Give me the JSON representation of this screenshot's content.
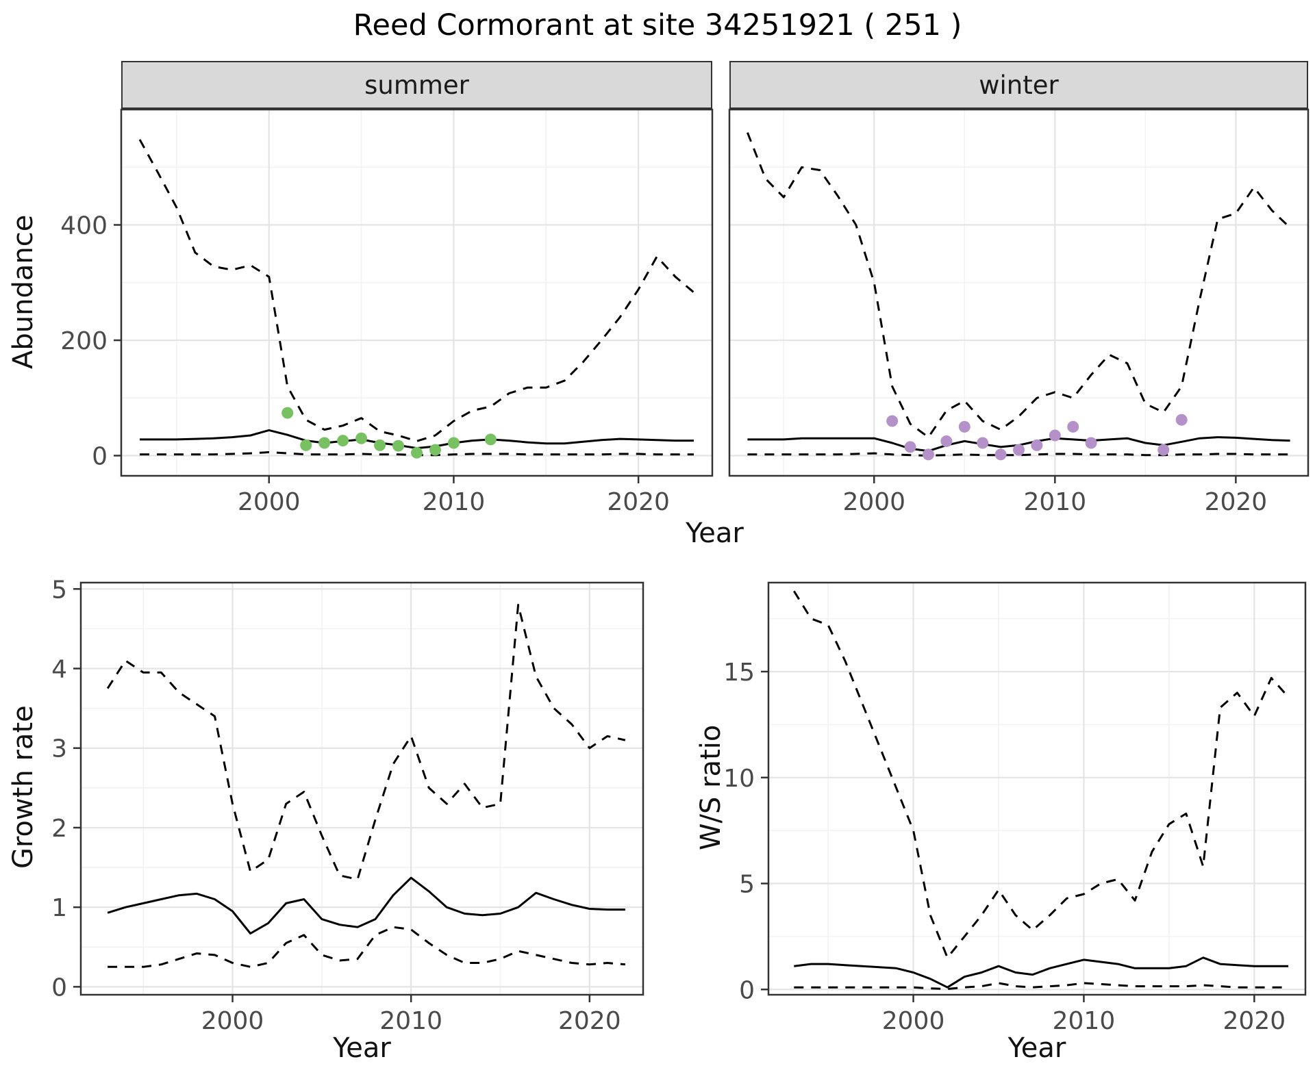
{
  "title": "Reed Cormorant at site 34251921 ( 251 )",
  "colors": {
    "summer_points": "#77c163",
    "winter_points": "#b491c8",
    "line": "#000000",
    "frame": "#333333",
    "strip_bg": "#d9d9d9",
    "grid_major": "#e4e4e4",
    "grid_minor": "#f2f2f2"
  },
  "chart_data": [
    {
      "type": "line",
      "title": "summer",
      "xlabel": "Year",
      "ylabel": "Abundance",
      "xlim": [
        1992,
        2024
      ],
      "ylim": [
        -35,
        600
      ],
      "xticks": [
        2000,
        2010,
        2020
      ],
      "yticks": [
        0,
        200,
        400
      ],
      "grid": true,
      "legend": "none",
      "x": [
        1993,
        1994,
        1995,
        1996,
        1997,
        1998,
        1999,
        2000,
        2001,
        2002,
        2003,
        2004,
        2005,
        2006,
        2007,
        2008,
        2009,
        2010,
        2011,
        2012,
        2013,
        2014,
        2015,
        2016,
        2017,
        2018,
        2019,
        2020,
        2021,
        2022,
        2023
      ],
      "series": [
        {
          "name": "upper_credible",
          "style": "dashed",
          "values": [
            548,
            490,
            430,
            352,
            328,
            322,
            330,
            310,
            120,
            62,
            45,
            52,
            65,
            42,
            35,
            25,
            35,
            60,
            78,
            85,
            108,
            118,
            118,
            130,
            162,
            200,
            240,
            288,
            345,
            310,
            283
          ]
        },
        {
          "name": "median",
          "style": "solid",
          "values": [
            28,
            28,
            28,
            29,
            30,
            32,
            35,
            44,
            36,
            26,
            22,
            25,
            28,
            22,
            18,
            13,
            16,
            22,
            26,
            28,
            26,
            23,
            21,
            21,
            24,
            27,
            29,
            28,
            27,
            26,
            26
          ]
        },
        {
          "name": "lower_credible",
          "style": "dashed",
          "values": [
            2,
            2,
            2,
            2,
            2,
            3,
            4,
            6,
            4,
            2,
            2,
            2,
            3,
            2,
            2,
            1,
            1,
            2,
            3,
            3,
            3,
            2,
            2,
            2,
            2,
            2,
            3,
            3,
            2,
            2,
            2
          ]
        }
      ],
      "points": {
        "name": "observed_count",
        "color": "#77c163",
        "x": [
          2001,
          2002,
          2003,
          2004,
          2005,
          2006,
          2007,
          2008,
          2009,
          2010,
          2012
        ],
        "y": [
          74,
          18,
          22,
          26,
          30,
          18,
          17,
          5,
          10,
          22,
          28
        ]
      }
    },
    {
      "type": "line",
      "title": "winter",
      "xlabel": "Year",
      "ylabel": "Abundance",
      "xlim": [
        1992,
        2024
      ],
      "ylim": [
        -35,
        600
      ],
      "xticks": [
        2000,
        2010,
        2020
      ],
      "yticks": [
        0,
        200,
        400
      ],
      "grid": true,
      "legend": "none",
      "x": [
        1993,
        1994,
        1995,
        1996,
        1997,
        1998,
        1999,
        2000,
        2001,
        2002,
        2003,
        2004,
        2005,
        2006,
        2007,
        2008,
        2009,
        2010,
        2011,
        2012,
        2013,
        2014,
        2015,
        2016,
        2017,
        2018,
        2019,
        2020,
        2021,
        2022,
        2023
      ],
      "series": [
        {
          "name": "upper_credible",
          "style": "dashed",
          "values": [
            560,
            480,
            448,
            500,
            495,
            450,
            400,
            300,
            120,
            55,
            32,
            78,
            95,
            60,
            45,
            68,
            100,
            110,
            100,
            140,
            175,
            160,
            90,
            75,
            120,
            270,
            410,
            420,
            465,
            425,
            395
          ]
        },
        {
          "name": "median",
          "style": "solid",
          "values": [
            28,
            28,
            28,
            30,
            30,
            30,
            30,
            30,
            22,
            12,
            8,
            18,
            25,
            20,
            15,
            18,
            25,
            30,
            28,
            26,
            28,
            30,
            22,
            18,
            24,
            30,
            32,
            31,
            29,
            27,
            26
          ]
        },
        {
          "name": "lower_credible",
          "style": "dashed",
          "values": [
            2,
            2,
            2,
            2,
            2,
            2,
            3,
            4,
            2,
            1,
            0,
            1,
            2,
            1,
            1,
            1,
            2,
            3,
            3,
            2,
            2,
            2,
            1,
            1,
            2,
            2,
            3,
            3,
            2,
            2,
            2
          ]
        }
      ],
      "points": {
        "name": "observed_count",
        "color": "#b491c8",
        "x": [
          2001,
          2002,
          2003,
          2004,
          2005,
          2006,
          2007,
          2008,
          2009,
          2010,
          2011,
          2012,
          2016,
          2017
        ],
        "y": [
          60,
          15,
          2,
          25,
          50,
          22,
          2,
          10,
          18,
          35,
          50,
          22,
          10,
          62
        ]
      }
    },
    {
      "type": "line",
      "title": "Growth rate",
      "xlabel": "Year",
      "ylabel": "Growth rate",
      "xlim": [
        1991.5,
        2023
      ],
      "ylim": [
        -0.1,
        5.08
      ],
      "xticks": [
        2000,
        2010,
        2020
      ],
      "yticks": [
        0,
        1,
        2,
        3,
        4,
        5
      ],
      "grid": true,
      "legend": "none",
      "x": [
        1993,
        1994,
        1995,
        1996,
        1997,
        1998,
        1999,
        2000,
        2001,
        2002,
        2003,
        2004,
        2005,
        2006,
        2007,
        2008,
        2009,
        2010,
        2011,
        2012,
        2013,
        2014,
        2015,
        2016,
        2017,
        2018,
        2019,
        2020,
        2021,
        2022
      ],
      "series": [
        {
          "name": "upper_credible",
          "style": "dashed",
          "values": [
            3.75,
            4.1,
            3.95,
            3.95,
            3.7,
            3.55,
            3.4,
            2.3,
            1.45,
            1.6,
            2.3,
            2.45,
            1.9,
            1.4,
            1.35,
            2.1,
            2.8,
            3.15,
            2.5,
            2.3,
            2.55,
            2.25,
            2.3,
            4.8,
            3.9,
            3.5,
            3.3,
            3.0,
            3.15,
            3.1
          ]
        },
        {
          "name": "median",
          "style": "solid",
          "values": [
            0.93,
            1.0,
            1.05,
            1.1,
            1.15,
            1.17,
            1.1,
            0.95,
            0.67,
            0.8,
            1.05,
            1.1,
            0.85,
            0.78,
            0.75,
            0.85,
            1.15,
            1.37,
            1.2,
            1.0,
            0.92,
            0.9,
            0.92,
            1.0,
            1.18,
            1.1,
            1.03,
            0.98,
            0.97,
            0.97
          ]
        },
        {
          "name": "lower_credible",
          "style": "dashed",
          "values": [
            0.25,
            0.25,
            0.25,
            0.28,
            0.35,
            0.42,
            0.4,
            0.3,
            0.25,
            0.3,
            0.55,
            0.65,
            0.4,
            0.33,
            0.35,
            0.65,
            0.75,
            0.72,
            0.55,
            0.4,
            0.3,
            0.3,
            0.35,
            0.45,
            0.4,
            0.35,
            0.3,
            0.28,
            0.3,
            0.28
          ]
        }
      ]
    },
    {
      "type": "line",
      "title": "W/S ratio",
      "xlabel": "Year",
      "ylabel": "W/S ratio",
      "xlim": [
        1991.5,
        2023
      ],
      "ylim": [
        -0.25,
        19.2
      ],
      "xticks": [
        2000,
        2010,
        2020
      ],
      "yticks": [
        0,
        5,
        10,
        15
      ],
      "grid": true,
      "legend": "none",
      "x": [
        1993,
        1994,
        1995,
        1996,
        1997,
        1998,
        1999,
        2000,
        2001,
        2002,
        2003,
        2004,
        2005,
        2006,
        2007,
        2008,
        2009,
        2010,
        2011,
        2012,
        2013,
        2014,
        2015,
        2016,
        2017,
        2018,
        2019,
        2020,
        2021,
        2022
      ],
      "series": [
        {
          "name": "upper_credible",
          "style": "dashed",
          "values": [
            18.8,
            17.5,
            17.2,
            15.5,
            13.5,
            11.5,
            9.5,
            7.5,
            3.5,
            1.5,
            2.5,
            3.5,
            4.7,
            3.5,
            2.8,
            3.5,
            4.3,
            4.5,
            5.0,
            5.2,
            4.2,
            6.5,
            7.8,
            8.3,
            5.8,
            13.3,
            14.0,
            12.9,
            14.7,
            13.8
          ]
        },
        {
          "name": "median",
          "style": "solid",
          "values": [
            1.1,
            1.2,
            1.2,
            1.15,
            1.1,
            1.05,
            1.0,
            0.8,
            0.5,
            0.1,
            0.6,
            0.8,
            1.1,
            0.8,
            0.7,
            1.0,
            1.2,
            1.4,
            1.3,
            1.2,
            1.0,
            1.0,
            1.0,
            1.1,
            1.5,
            1.2,
            1.15,
            1.1,
            1.1,
            1.1
          ]
        },
        {
          "name": "lower_credible",
          "style": "dashed",
          "values": [
            0.1,
            0.1,
            0.1,
            0.1,
            0.1,
            0.1,
            0.1,
            0.1,
            0.05,
            0.02,
            0.1,
            0.15,
            0.3,
            0.15,
            0.1,
            0.15,
            0.2,
            0.3,
            0.25,
            0.2,
            0.15,
            0.15,
            0.15,
            0.15,
            0.2,
            0.15,
            0.1,
            0.1,
            0.1,
            0.1
          ]
        }
      ]
    }
  ]
}
